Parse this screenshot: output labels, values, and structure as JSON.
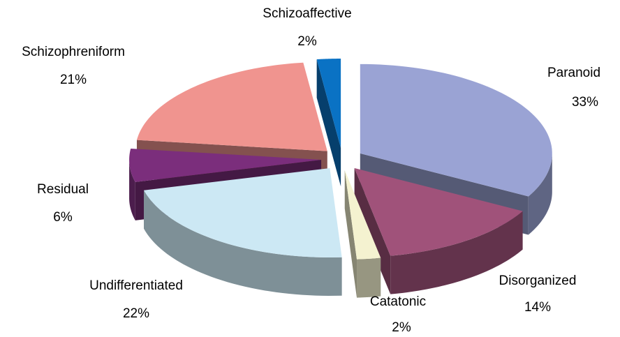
{
  "chart_data": {
    "type": "pie3d",
    "categories": [
      "Paranoid",
      "Disorganized",
      "Catatonic",
      "Undifferentiated",
      "Residual",
      "Schizophreniform",
      "Schizoaffective"
    ],
    "values": [
      33,
      14,
      2,
      22,
      6,
      21,
      2
    ],
    "value_labels": [
      "33%",
      "14%",
      "2%",
      "22%",
      "6%",
      "21%",
      "2%"
    ],
    "colors": [
      "#9aa3d4",
      "#a0527a",
      "#f4f2d0",
      "#cce8f4",
      "#7b2e7c",
      "#f0948f",
      "#0a72c4"
    ]
  }
}
